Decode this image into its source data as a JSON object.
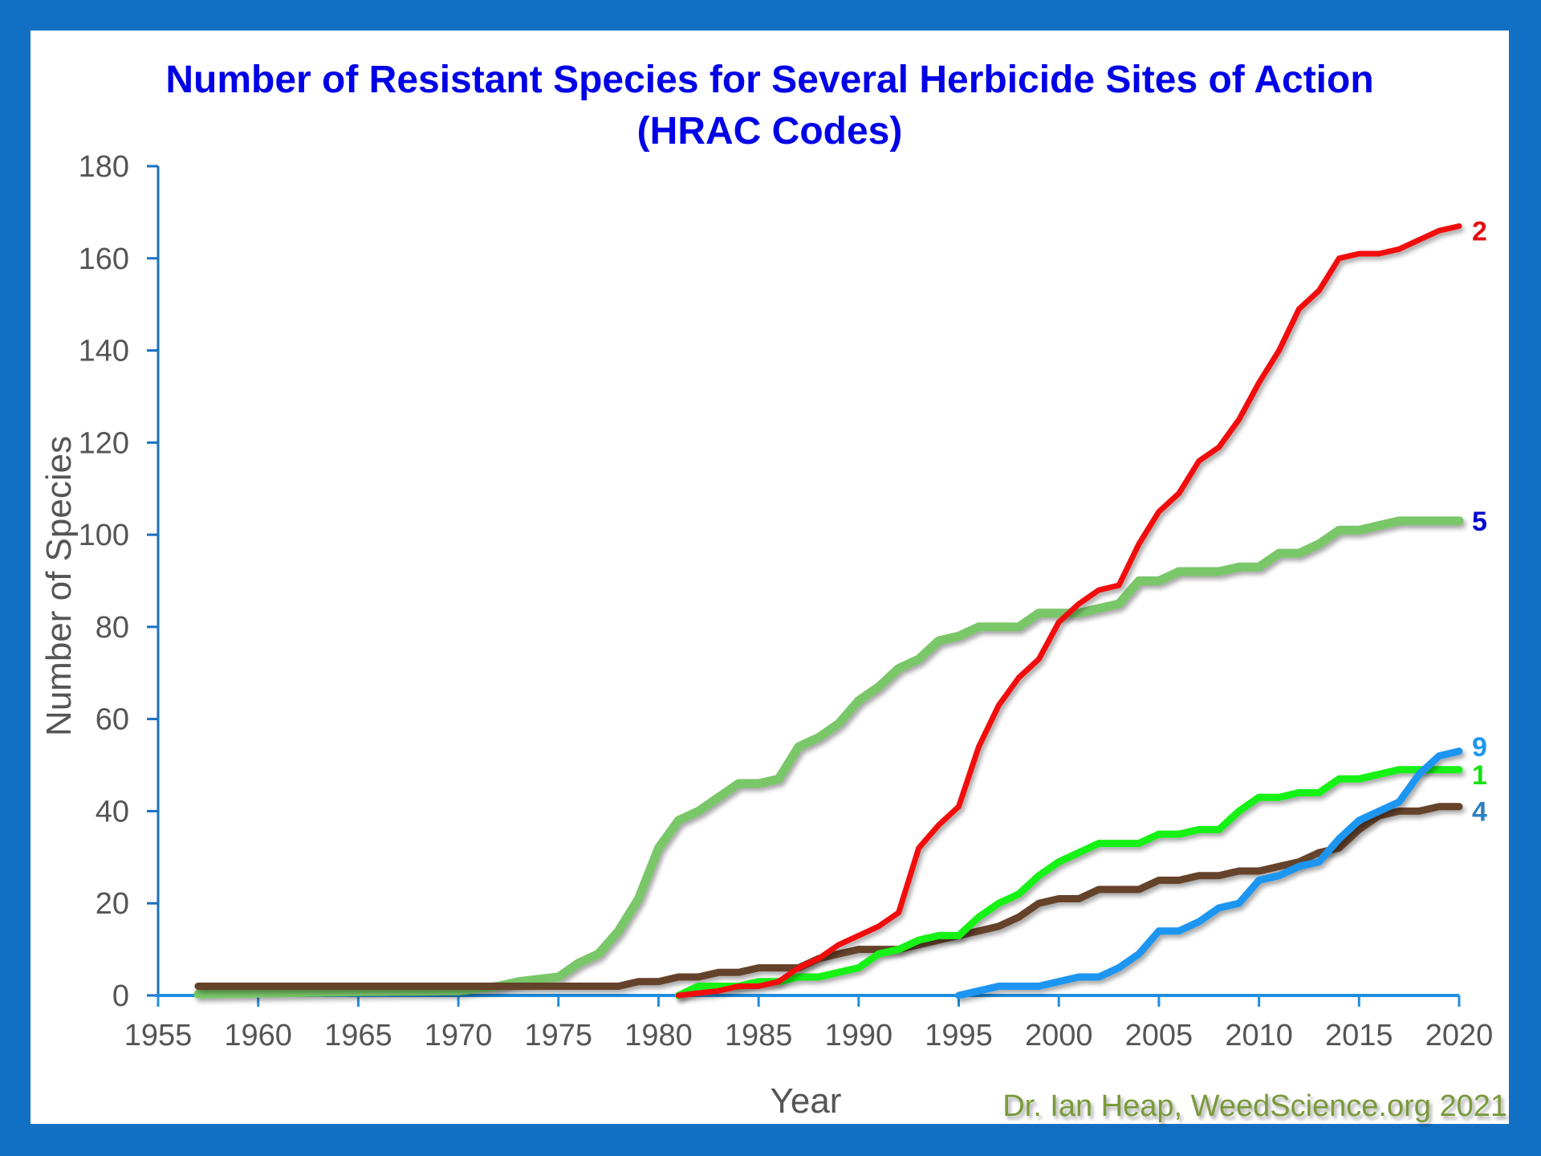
{
  "chart_data": {
    "type": "line",
    "title": [
      "Number of Resistant Species for Several Herbicide Sites of Action",
      "(HRAC Codes)"
    ],
    "xlabel": "Year",
    "ylabel": "Number of Species",
    "xlim": [
      1955,
      2020
    ],
    "ylim": [
      0,
      180
    ],
    "xticks": [
      1955,
      1960,
      1965,
      1970,
      1975,
      1980,
      1985,
      1990,
      1995,
      2000,
      2005,
      2010,
      2015,
      2020
    ],
    "yticks": [
      0,
      20,
      40,
      60,
      80,
      100,
      120,
      140,
      160,
      180
    ],
    "grid": false,
    "legend": "inline-end-labels-right",
    "series": [
      {
        "name": "5",
        "color": "#79c767",
        "label_color": "#0000cc",
        "x": [
          1957,
          1960,
          1965,
          1970,
          1971,
          1972,
          1973,
          1974,
          1975,
          1976,
          1977,
          1978,
          1979,
          1980,
          1981,
          1982,
          1983,
          1984,
          1985,
          1986,
          1987,
          1988,
          1989,
          1990,
          1991,
          1992,
          1993,
          1994,
          1995,
          1996,
          1997,
          1998,
          1999,
          2000,
          2001,
          2002,
          2003,
          2004,
          2005,
          2006,
          2007,
          2008,
          2009,
          2010,
          2011,
          2012,
          2013,
          2014,
          2015,
          2016,
          2017,
          2018,
          2019,
          2020
        ],
        "values": [
          0.3,
          0.5,
          0.8,
          1,
          1.5,
          2,
          3,
          3.5,
          4,
          7,
          9,
          14,
          21,
          32,
          38,
          40,
          43,
          46,
          46,
          47,
          54,
          56,
          59,
          64,
          67,
          71,
          73,
          77,
          78,
          80,
          80,
          80,
          83,
          83,
          83,
          84,
          85,
          90,
          90,
          92,
          92,
          92,
          93,
          93,
          96,
          96,
          98,
          101,
          101,
          102,
          103,
          103,
          103,
          103
        ]
      },
      {
        "name": "4",
        "color": "#654329",
        "label_color": "#2f7fc1",
        "x": [
          1957,
          1960,
          1965,
          1970,
          1975,
          1978,
          1979,
          1980,
          1981,
          1982,
          1983,
          1984,
          1985,
          1986,
          1987,
          1988,
          1989,
          1990,
          1991,
          1992,
          1993,
          1994,
          1995,
          1996,
          1997,
          1998,
          1999,
          2000,
          2001,
          2002,
          2003,
          2004,
          2005,
          2006,
          2007,
          2008,
          2009,
          2010,
          2011,
          2012,
          2013,
          2014,
          2015,
          2016,
          2017,
          2018,
          2019,
          2020
        ],
        "values": [
          2,
          2,
          2,
          2,
          2,
          2,
          3,
          3,
          4,
          4,
          5,
          5,
          6,
          6,
          6,
          8,
          9,
          10,
          10,
          10,
          11,
          12,
          13,
          14,
          15,
          17,
          20,
          21,
          21,
          23,
          23,
          23,
          25,
          25,
          26,
          26,
          27,
          27,
          28,
          29,
          31,
          32,
          36,
          39,
          40,
          40,
          41,
          41
        ]
      },
      {
        "name": "1",
        "color": "#14f214",
        "label_color": "#14e014",
        "x": [
          1981,
          1982,
          1983,
          1984,
          1985,
          1986,
          1987,
          1988,
          1989,
          1990,
          1991,
          1992,
          1993,
          1994,
          1995,
          1996,
          1997,
          1998,
          1999,
          2000,
          2001,
          2002,
          2003,
          2004,
          2005,
          2006,
          2007,
          2008,
          2009,
          2010,
          2011,
          2012,
          2013,
          2014,
          2015,
          2016,
          2017,
          2018,
          2019,
          2020
        ],
        "values": [
          0,
          2,
          2,
          2,
          3,
          3,
          4,
          4,
          5,
          6,
          9,
          10,
          12,
          13,
          13,
          17,
          20,
          22,
          26,
          29,
          31,
          33,
          33,
          33,
          35,
          35,
          36,
          36,
          40,
          43,
          43,
          44,
          44,
          47,
          47,
          48,
          49,
          49,
          49,
          49
        ]
      },
      {
        "name": "2",
        "color": "#f20c0c",
        "label_color": "#e01010",
        "x": [
          1981,
          1982,
          1983,
          1984,
          1985,
          1986,
          1987,
          1988,
          1989,
          1990,
          1991,
          1992,
          1993,
          1994,
          1995,
          1996,
          1997,
          1998,
          1999,
          2000,
          2001,
          2002,
          2003,
          2004,
          2005,
          2006,
          2007,
          2008,
          2009,
          2010,
          2011,
          2012,
          2013,
          2014,
          2015,
          2016,
          2017,
          2018,
          2019,
          2020
        ],
        "values": [
          0,
          0.5,
          1,
          2,
          2,
          3,
          6,
          8,
          11,
          13,
          15,
          18,
          32,
          37,
          41,
          54,
          63,
          69,
          73,
          81,
          85,
          88,
          89,
          98,
          105,
          109,
          116,
          119,
          125,
          133,
          140,
          149,
          153,
          160,
          161,
          161,
          162,
          164,
          166,
          167
        ]
      },
      {
        "name": "9",
        "color": "#1e96f0",
        "label_color": "#1e96f0",
        "x": [
          1995,
          1996,
          1997,
          1998,
          1999,
          2000,
          2001,
          2002,
          2003,
          2004,
          2005,
          2006,
          2007,
          2008,
          2009,
          2010,
          2011,
          2012,
          2013,
          2014,
          2015,
          2016,
          2017,
          2018,
          2019,
          2020
        ],
        "values": [
          0,
          1,
          2,
          2,
          2,
          3,
          4,
          4,
          6,
          9,
          14,
          14,
          16,
          19,
          20,
          25,
          26,
          28,
          29,
          34,
          38,
          40,
          42,
          48,
          52,
          53
        ]
      }
    ]
  },
  "credit": "Dr. Ian Heap, WeedScience.org 2021",
  "colors": {
    "frame": "#1270c4",
    "title": "#0000e6",
    "axis": "#1e8fe0",
    "tick_text": "#555555",
    "credit": "#7a9a3a"
  }
}
